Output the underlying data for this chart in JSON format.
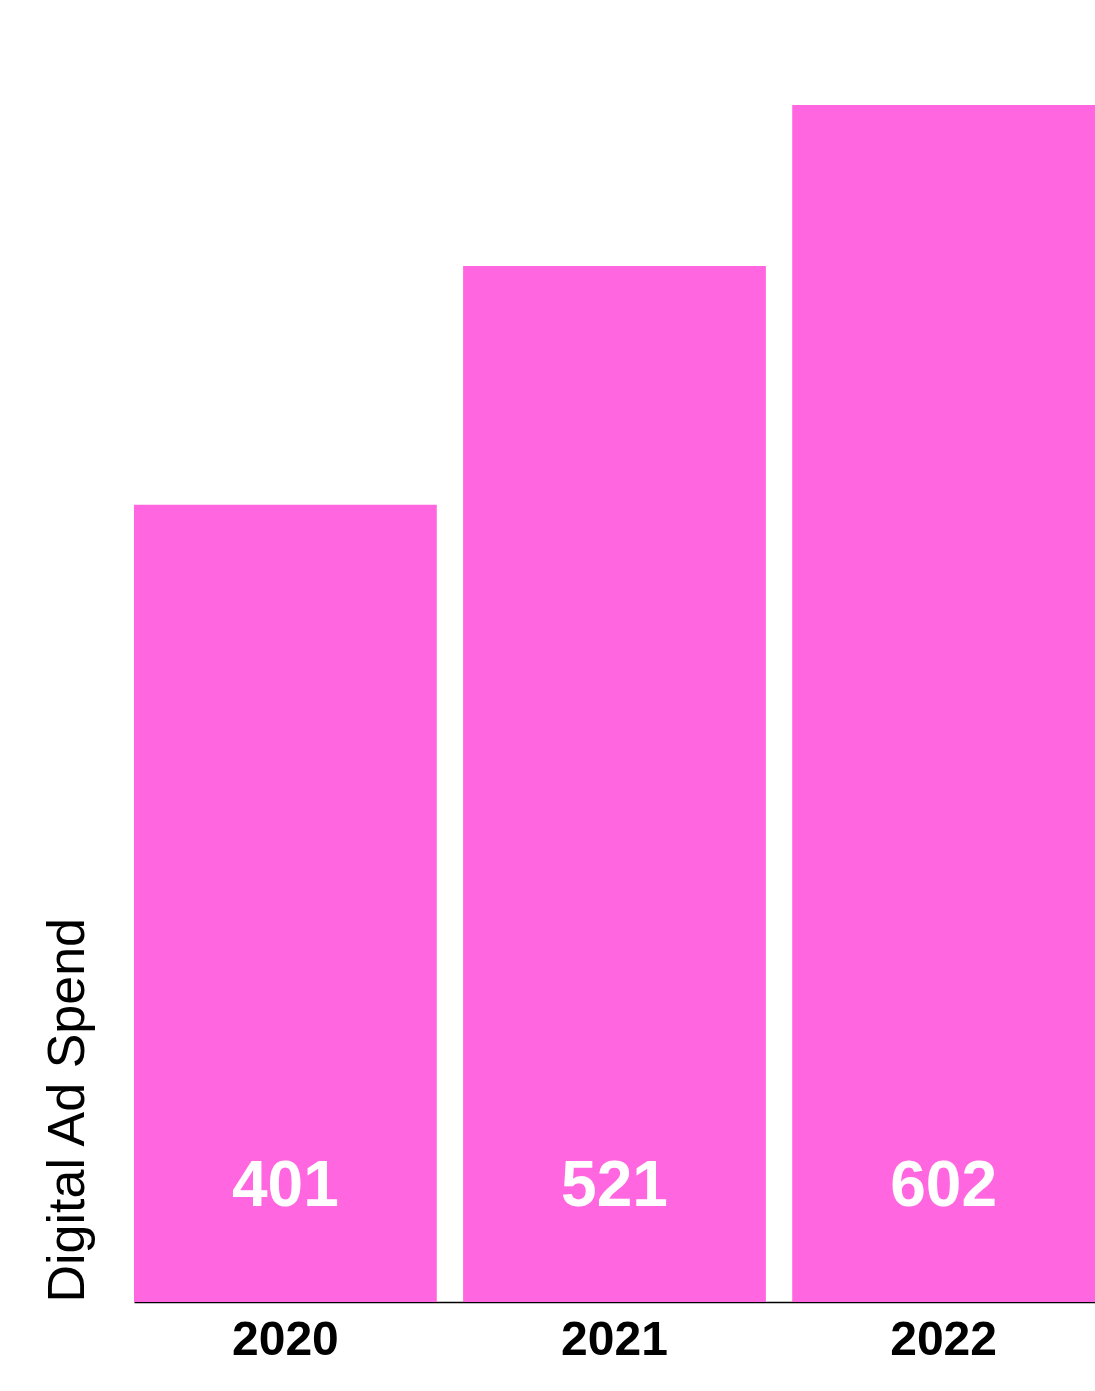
{
  "chart_data": {
    "type": "bar",
    "ylabel": "Digital Ad Spend",
    "categories": [
      "2020",
      "2021",
      "2022"
    ],
    "values": [
      401,
      521,
      602
    ],
    "color": "#ff66e0",
    "data_labels": true
  }
}
